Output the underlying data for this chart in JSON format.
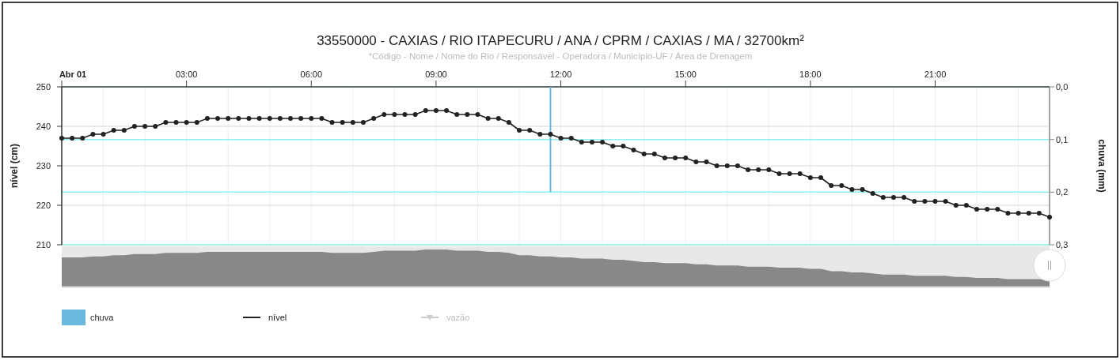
{
  "chart_data": {
    "type": "line",
    "title": "33550000 - CAXIAS / RIO ITAPECURU / ANA / CPRM / CAXIAS / MA / 32700km²",
    "subtitle": "*Código - Nome / Nome do Rio / Responsável - Operadora / Município-UF / Área de Drenagem",
    "ylabel": "nível (cm)",
    "y2label": "chuva (mm)",
    "x": [
      0,
      0.25,
      0.5,
      0.75,
      1,
      1.25,
      1.5,
      1.75,
      2,
      2.25,
      2.5,
      2.75,
      3,
      3.25,
      3.5,
      3.75,
      4,
      4.25,
      4.5,
      4.75,
      5,
      5.25,
      5.5,
      5.75,
      6,
      6.25,
      6.5,
      6.75,
      7,
      7.25,
      7.5,
      7.75,
      8,
      8.25,
      8.5,
      8.75,
      9,
      9.25,
      9.5,
      9.75,
      10,
      10.25,
      10.5,
      10.75,
      11,
      11.25,
      11.5,
      11.75,
      12,
      12.25,
      12.5,
      12.75,
      13,
      13.25,
      13.5,
      13.75,
      14,
      14.25,
      14.5,
      14.75,
      15,
      15.25,
      15.5,
      15.75,
      16,
      16.25,
      16.5,
      16.75,
      17,
      17.25,
      17.5,
      17.75,
      18,
      18.25,
      18.5,
      18.75,
      19,
      19.25,
      19.5,
      19.75,
      20,
      20.25,
      20.5,
      20.75,
      21,
      21.25,
      21.5,
      21.75,
      22,
      22.25,
      22.5,
      22.75,
      23,
      23.25,
      23.5,
      23.75
    ],
    "series": [
      {
        "name": "chuva",
        "type": "bar",
        "axis": "y2",
        "color": "#6ab9dd",
        "x": [
          11.75
        ],
        "values": [
          0.2
        ]
      },
      {
        "name": "nível",
        "type": "line",
        "color": "#222222",
        "marker": "circle",
        "values": [
          237,
          237,
          237,
          238,
          238,
          239,
          239,
          240,
          240,
          240,
          241,
          241,
          241,
          241,
          242,
          242,
          242,
          242,
          242,
          242,
          242,
          242,
          242,
          242,
          242,
          242,
          241,
          241,
          241,
          241,
          242,
          243,
          243,
          243,
          243,
          244,
          244,
          244,
          243,
          243,
          243,
          242,
          242,
          241,
          239,
          239,
          238,
          238,
          237,
          237,
          236,
          236,
          236,
          235,
          235,
          234,
          233,
          233,
          232,
          232,
          232,
          231,
          231,
          230,
          230,
          230,
          229,
          229,
          229,
          228,
          228,
          228,
          227,
          227,
          225,
          225,
          224,
          224,
          223,
          222,
          222,
          222,
          221,
          221,
          221,
          221,
          220,
          220,
          219,
          219,
          219,
          218,
          218,
          218,
          218,
          217
        ]
      },
      {
        "name": "vazão",
        "type": "line",
        "color": "#cccccc",
        "marker": "triangle",
        "values": [
          null,
          null,
          null,
          null,
          null,
          null,
          null,
          null,
          null,
          null,
          null,
          null,
          null,
          null,
          null,
          null,
          null,
          null,
          null,
          null,
          null,
          null,
          null,
          null,
          null,
          null,
          null,
          null,
          null,
          null,
          null,
          null,
          null,
          null,
          null,
          null,
          null,
          null,
          null,
          null,
          null,
          null,
          null,
          null,
          null,
          null,
          null,
          null,
          null,
          null,
          null,
          null,
          null,
          null,
          null,
          null,
          null,
          null,
          null,
          null,
          null,
          null,
          null,
          null,
          null,
          null,
          null,
          null,
          null,
          null,
          null,
          null,
          null,
          null,
          null,
          null,
          null,
          null,
          null,
          null,
          null,
          null,
          null,
          null,
          null,
          null,
          null,
          null,
          null,
          null,
          null,
          null,
          null,
          null,
          null,
          null
        ]
      }
    ],
    "xlim": [
      0,
      23.75
    ],
    "xticks": [
      {
        "value": 0,
        "label": "Abr 01"
      },
      {
        "value": 1,
        "label": null
      },
      {
        "value": 2,
        "label": null
      },
      {
        "value": 3,
        "label": "03:00"
      },
      {
        "value": 4,
        "label": null
      },
      {
        "value": 5,
        "label": null
      },
      {
        "value": 6,
        "label": "06:00"
      },
      {
        "value": 7,
        "label": null
      },
      {
        "value": 8,
        "label": null
      },
      {
        "value": 9,
        "label": "09:00"
      },
      {
        "value": 10,
        "label": null
      },
      {
        "value": 11,
        "label": null
      },
      {
        "value": 12,
        "label": "12:00"
      },
      {
        "value": 13,
        "label": null
      },
      {
        "value": 14,
        "label": null
      },
      {
        "value": 15,
        "label": "15:00"
      },
      {
        "value": 16,
        "label": null
      },
      {
        "value": 17,
        "label": null
      },
      {
        "value": 18,
        "label": "18:00"
      },
      {
        "value": 19,
        "label": null
      },
      {
        "value": 20,
        "label": null
      },
      {
        "value": 21,
        "label": "21:00"
      },
      {
        "value": 22,
        "label": null
      },
      {
        "value": 23,
        "label": null
      }
    ],
    "ylim": [
      210,
      250
    ],
    "yticks": [
      210,
      220,
      230,
      240,
      250
    ],
    "y2lim": [
      0.3,
      0
    ],
    "y2ticks": [
      {
        "value": 0,
        "label": "0,0"
      },
      {
        "value": 0.1,
        "label": "0,1"
      },
      {
        "value": 0.2,
        "label": "0,2"
      },
      {
        "value": 0.3,
        "label": "0,3"
      }
    ],
    "grid": true,
    "legend": "bottom left"
  }
}
